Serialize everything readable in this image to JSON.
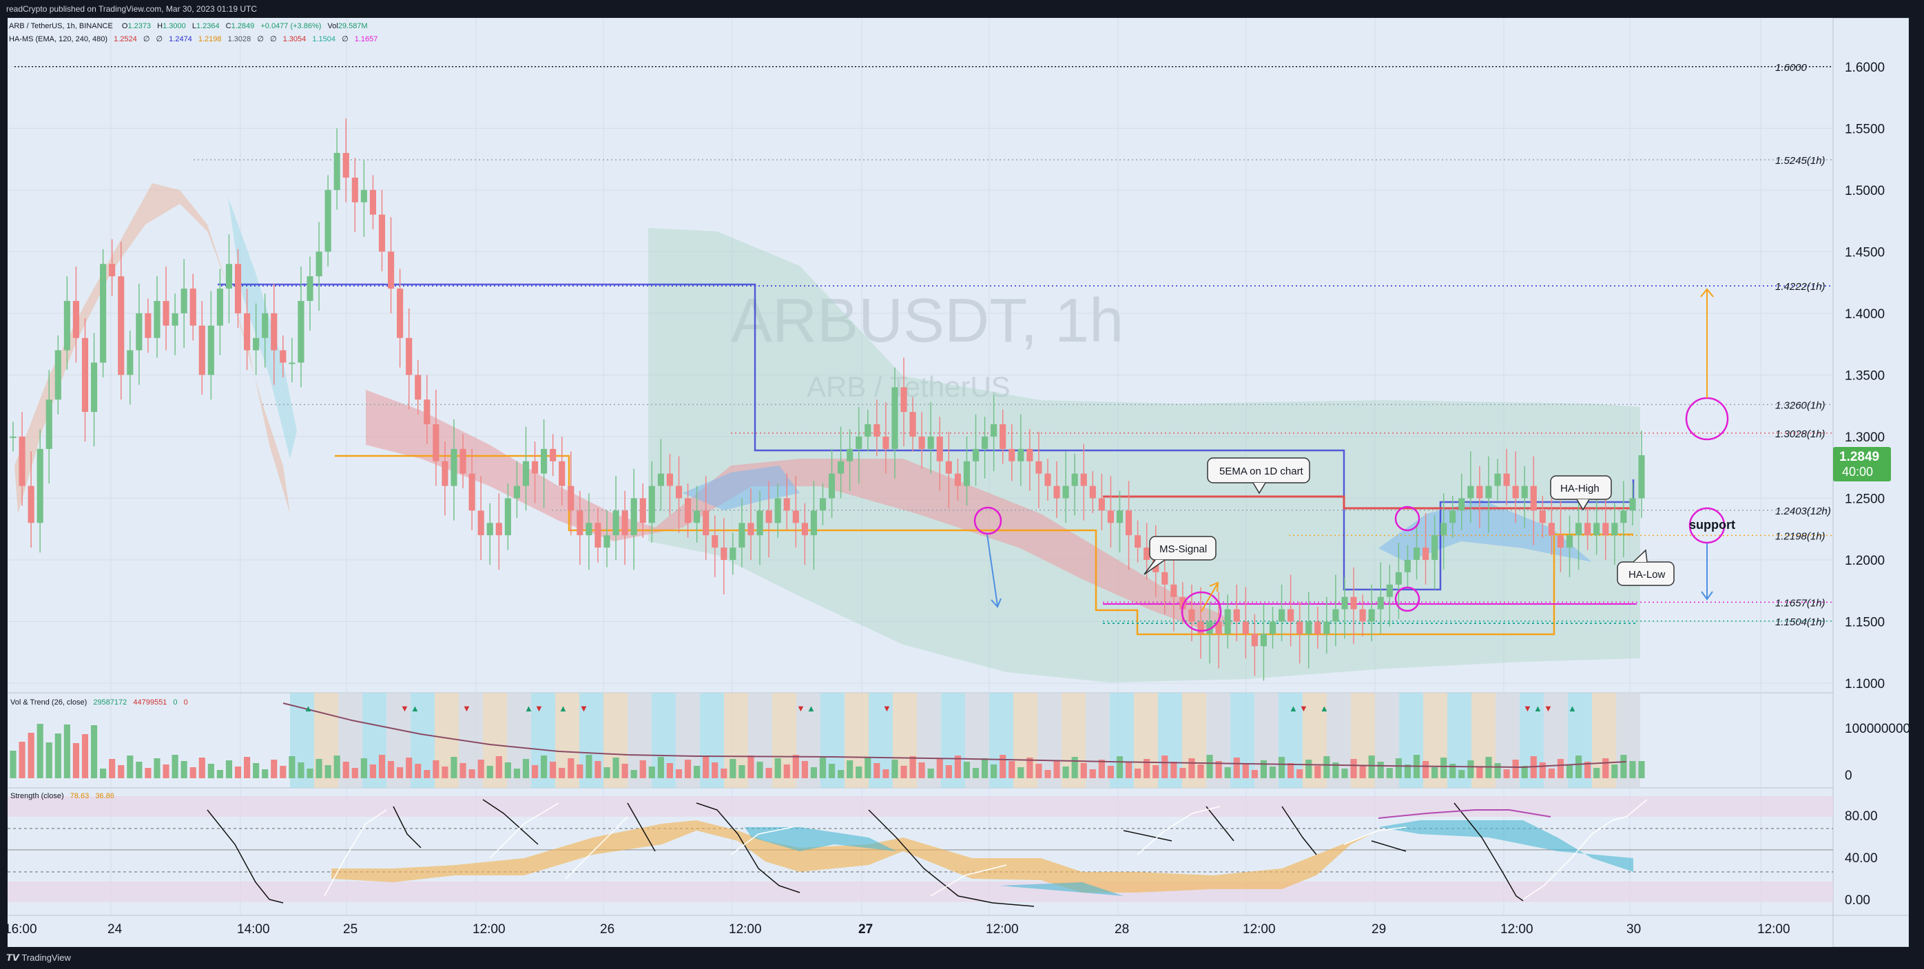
{
  "header": {
    "published": "readCrypto published on TradingView.com, Mar 30, 2023 01:19 UTC"
  },
  "legend": {
    "symbol": "ARB / TetherUS, 1h, BINANCE",
    "o_label": "O",
    "o": "1.2373",
    "h_label": "H",
    "h": "1.3000",
    "l_label": "L",
    "l": "1.2364",
    "c_label": "C",
    "c": "1.2849",
    "change": "+0.0477 (+3.86%)",
    "vol_label": "Vol",
    "vol": "29.587M",
    "ind": "HA-MS (EMA, 120, 240, 480)",
    "ind_v1": "1.2524",
    "ind_v2": "∅",
    "ind_v3": "∅",
    "ind_v4": "1.2474",
    "ind_v5": "1.2198",
    "ind_v6": "1.3028",
    "ind_v7": "∅",
    "ind_v8": "∅",
    "ind_v9": "1.3054",
    "ind_v10": "1.1504",
    "ind_v11": "∅",
    "ind_v12": "1.1657"
  },
  "watermark": {
    "symbol": "ARBUSDT, 1h",
    "name": "ARB / TetherUS"
  },
  "price_axis": [
    "1.6000",
    "1.5500",
    "1.5000",
    "1.4500",
    "1.4000",
    "1.3500",
    "1.3000",
    "1.2500",
    "1.2000",
    "1.1500",
    "1.1000"
  ],
  "level_labels": [
    "1.6000",
    "1.5245(1h)",
    "1.4222(1h)",
    "1.3260(1h)",
    "1.3028(1h)",
    "1.2403(12h)",
    "1.2198(1h)",
    "1.1657(1h)",
    "1.1504(1h)"
  ],
  "last_price": {
    "value": "1.2849",
    "countdown": "40:00"
  },
  "callouts": {
    "ema": "5EMA on 1D chart",
    "ms": "MS-Signal",
    "high": "HA-High",
    "low": "HA-Low",
    "support": "support"
  },
  "vol_pane": {
    "title": "Vol & Trend (26, close)",
    "v1": "29587172",
    "v2": "44799551",
    "v3": "0",
    "v4": "0",
    "axis": [
      "100000000",
      "0"
    ]
  },
  "strength_pane": {
    "title": "Strength (close)",
    "v1": "78.63",
    "v2": "36.86",
    "axis": [
      "80.00",
      "40.00",
      "0.00"
    ]
  },
  "time_axis": [
    "16:00",
    "24",
    "14:00",
    "25",
    "12:00",
    "26",
    "12:00",
    "27",
    "12:00",
    "28",
    "12:00",
    "29",
    "12:00",
    "30",
    "12:00"
  ],
  "footer": {
    "brand": "TradingView"
  },
  "colors": {
    "bg": "#e3ecf6",
    "up": "#75c18a",
    "down": "#ef8585",
    "blue_level": "#2a2ed1",
    "magenta": "#e21cd6",
    "orange": "#f5a11a",
    "teal": "#22a99c"
  },
  "chart_data": {
    "type": "candlestick",
    "symbol": "ARBUSDT",
    "interval": "1h",
    "ylim": [
      1.095,
      1.625
    ],
    "levels": [
      1.6,
      1.5245,
      1.4222,
      1.326,
      1.3028,
      1.2403,
      1.2198,
      1.1657,
      1.1504
    ],
    "closes": [
      1.3,
      1.26,
      1.23,
      1.29,
      1.33,
      1.37,
      1.41,
      1.38,
      1.32,
      1.36,
      1.44,
      1.43,
      1.35,
      1.37,
      1.4,
      1.38,
      1.41,
      1.39,
      1.4,
      1.42,
      1.39,
      1.35,
      1.39,
      1.42,
      1.44,
      1.4,
      1.37,
      1.38,
      1.4,
      1.37,
      1.36,
      1.36,
      1.41,
      1.43,
      1.45,
      1.5,
      1.53,
      1.51,
      1.49,
      1.5,
      1.48,
      1.45,
      1.42,
      1.38,
      1.35,
      1.33,
      1.31,
      1.28,
      1.26,
      1.29,
      1.27,
      1.24,
      1.22,
      1.23,
      1.22,
      1.25,
      1.26,
      1.28,
      1.27,
      1.29,
      1.28,
      1.26,
      1.24,
      1.22,
      1.23,
      1.21,
      1.22,
      1.24,
      1.22,
      1.25,
      1.23,
      1.26,
      1.27,
      1.26,
      1.25,
      1.23,
      1.24,
      1.22,
      1.21,
      1.2,
      1.21,
      1.23,
      1.22,
      1.24,
      1.23,
      1.25,
      1.24,
      1.23,
      1.22,
      1.24,
      1.25,
      1.27,
      1.28,
      1.29,
      1.3,
      1.31,
      1.3,
      1.29,
      1.34,
      1.32,
      1.3,
      1.29,
      1.3,
      1.28,
      1.27,
      1.26,
      1.28,
      1.29,
      1.3,
      1.31,
      1.29,
      1.28,
      1.29,
      1.28,
      1.27,
      1.26,
      1.25,
      1.26,
      1.27,
      1.26,
      1.25,
      1.24,
      1.23,
      1.24,
      1.22,
      1.21,
      1.2,
      1.19,
      1.18,
      1.17,
      1.16,
      1.15,
      1.14,
      1.15,
      1.14,
      1.16,
      1.15,
      1.14,
      1.13,
      1.14,
      1.15,
      1.16,
      1.15,
      1.14,
      1.15,
      1.14,
      1.15,
      1.16,
      1.17,
      1.16,
      1.15,
      1.16,
      1.17,
      1.18,
      1.19,
      1.2,
      1.21,
      1.2,
      1.22,
      1.23,
      1.24,
      1.25,
      1.26,
      1.25,
      1.26,
      1.27,
      1.26,
      1.25,
      1.26,
      1.24,
      1.23,
      1.22,
      1.21,
      1.22,
      1.23,
      1.22,
      1.23,
      1.22,
      1.23,
      1.24,
      1.25,
      1.2849
    ]
  }
}
